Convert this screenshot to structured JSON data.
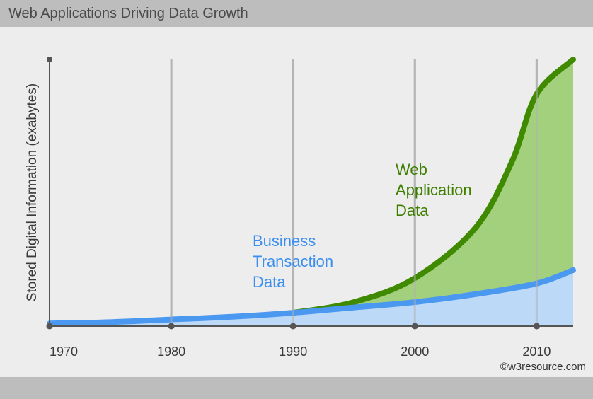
{
  "chart_data": {
    "type": "area",
    "title": "Web Applications Driving Data Growth",
    "ylabel": "Stored Digital Information (exabytes)",
    "xlabel": "",
    "x_ticks": [
      "1970",
      "1980",
      "1990",
      "2000",
      "2010"
    ],
    "xlim": [
      1970,
      2013
    ],
    "series": [
      {
        "name": "Business Transaction Data",
        "label_lines": [
          "Business",
          "Transaction",
          "Data"
        ],
        "color": "#4a98f0",
        "fill": "#bcd9f8",
        "points": [
          [
            1970,
            0.01
          ],
          [
            1975,
            0.015
          ],
          [
            1980,
            0.025
          ],
          [
            1985,
            0.035
          ],
          [
            1990,
            0.05
          ],
          [
            1995,
            0.07
          ],
          [
            2000,
            0.09
          ],
          [
            2005,
            0.12
          ],
          [
            2010,
            0.16
          ],
          [
            2013,
            0.21
          ]
        ]
      },
      {
        "name": "Web Application Data",
        "label_lines": [
          "Web",
          "Application",
          "Data"
        ],
        "color": "#3f8a00",
        "fill": "#a3d07c",
        "points": [
          [
            1990,
            0.05
          ],
          [
            1995,
            0.09
          ],
          [
            2000,
            0.18
          ],
          [
            2005,
            0.37
          ],
          [
            2008,
            0.62
          ],
          [
            2010,
            0.87
          ],
          [
            2013,
            1.0
          ]
        ]
      }
    ],
    "grid": true,
    "credit": "©w3resource.com"
  }
}
